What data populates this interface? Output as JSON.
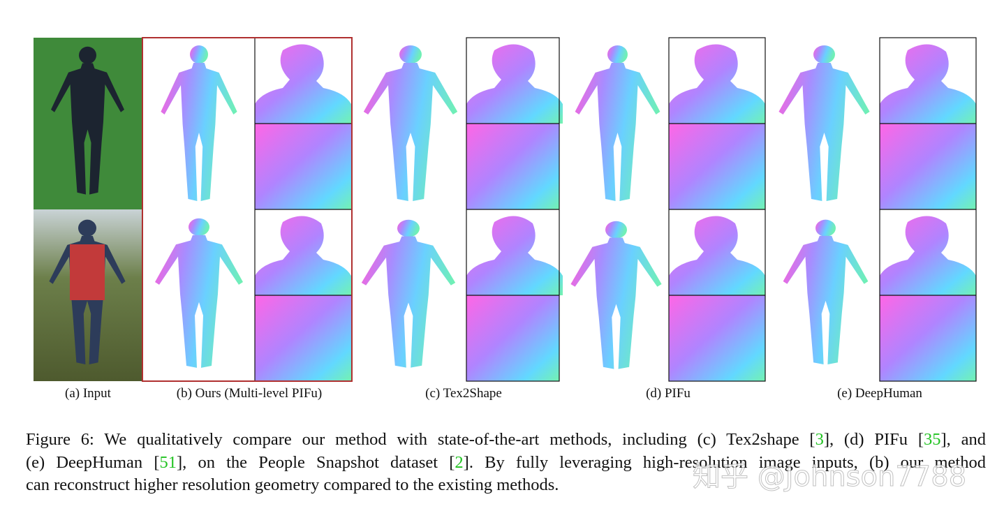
{
  "panels": [
    {
      "label": "(a) Input"
    },
    {
      "label": "(b) Ours (Multi-level PIFu)"
    },
    {
      "label": "(c) Tex2Shape"
    },
    {
      "label": "(d) PIFu"
    },
    {
      "label": "(e) DeepHuman"
    }
  ],
  "caption": {
    "lines": [
      {
        "parts": [
          {
            "text": "Figure 6: We qualitatively compare our method with state-of-the-art methods, including (c) Tex2shape ["
          },
          {
            "text": "3",
            "color": "#22c322"
          },
          {
            "text": "], (d) PIFu ["
          },
          {
            "text": "35",
            "color": "#22c322"
          },
          {
            "text": "], and"
          }
        ]
      },
      {
        "parts": [
          {
            "text": "(e) DeepHuman ["
          },
          {
            "text": "51",
            "color": "#22c322"
          },
          {
            "text": "], on the People Snapshot dataset ["
          },
          {
            "text": "2",
            "color": "#22c322"
          },
          {
            "text": "]. By fully leveraging high-resolution image inputs, (b) our method"
          }
        ]
      },
      {
        "parts": [
          {
            "text": "can reconstruct higher resolution geometry compared to the existing methods."
          }
        ]
      }
    ]
  },
  "watermark": "知乎 @Johnson7788"
}
